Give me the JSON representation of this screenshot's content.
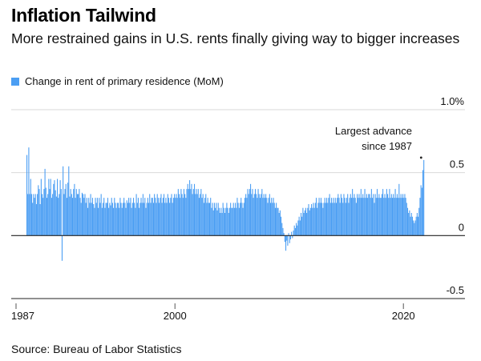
{
  "header": {
    "title": "Inflation Tailwind",
    "subtitle": "More restrained gains in U.S. rents finally giving way to bigger increases"
  },
  "legend": {
    "label": "Change in rent of primary residence (MoM)",
    "color": "#4b9ef3"
  },
  "footer": {
    "source": "Source: Bureau of Labor Statistics"
  },
  "chart_data": {
    "type": "bar",
    "title": "Inflation Tailwind",
    "subtitle": "More restrained gains in U.S. rents finally giving way to bigger increases",
    "xlabel": "",
    "ylabel": "",
    "unit": "%",
    "x_range": [
      1987,
      2021.6
    ],
    "ylim": [
      -0.5,
      1.0
    ],
    "y_ticks": [
      {
        "value": 1.0,
        "label": "1.0%"
      },
      {
        "value": 0.5,
        "label": "0.5"
      },
      {
        "value": 0,
        "label": "0"
      },
      {
        "value": -0.5,
        "label": "-0.5"
      }
    ],
    "x_ticks": [
      {
        "value": 1987,
        "label": "1987"
      },
      {
        "value": 2000,
        "label": "2000"
      },
      {
        "value": 2020,
        "label": "2020"
      }
    ],
    "grid": true,
    "legend_position": "top-left",
    "bar_color": "#4b9ef3",
    "annotation": {
      "lines": [
        "Largest advance",
        "since 1987"
      ],
      "year": 2021.55,
      "value": 0.6
    },
    "series": [
      {
        "name": "Change in rent of primary residence (MoM)",
        "start": "1987-01",
        "frequency": "monthly",
        "values_by_year": [
          {
            "year": 1987,
            "values": [
              0.64,
              0.33,
              0.7,
              0.33,
              0.45,
              0.33,
              0.26,
              0.33,
              0.3,
              0.33,
              0.25,
              0.33
            ]
          },
          {
            "year": 1988,
            "values": [
              0.4,
              0.37,
              0.25,
              0.45,
              0.33,
              0.3,
              0.37,
              0.53,
              0.38,
              0.3,
              0.33,
              0.45
            ]
          },
          {
            "year": 1989,
            "values": [
              0.37,
              0.45,
              0.3,
              0.33,
              0.41,
              0.44,
              0.36,
              0.31,
              0.45,
              0.3,
              0.33,
              0.44
            ]
          },
          {
            "year": 1990,
            "values": [
              0.37,
              -0.2,
              0.55,
              0.33,
              0.37,
              0.41,
              0.3,
              0.42,
              0.55,
              0.31,
              0.37,
              0.33
            ]
          },
          {
            "year": 1991,
            "values": [
              0.3,
              0.37,
              0.41,
              0.3,
              0.37,
              0.33,
              0.33,
              0.37,
              0.3,
              0.26,
              0.34,
              0.33
            ]
          },
          {
            "year": 1992,
            "values": [
              0.3,
              0.33,
              0.26,
              0.3,
              0.22,
              0.3,
              0.26,
              0.33,
              0.26,
              0.3,
              0.25,
              0.22
            ]
          },
          {
            "year": 1993,
            "values": [
              0.3,
              0.26,
              0.3,
              0.22,
              0.3,
              0.26,
              0.33,
              0.22,
              0.26,
              0.3,
              0.22,
              0.26
            ]
          },
          {
            "year": 1994,
            "values": [
              0.26,
              0.3,
              0.22,
              0.26,
              0.24,
              0.3,
              0.26,
              0.22,
              0.3,
              0.26,
              0.22,
              0.26
            ]
          },
          {
            "year": 1995,
            "values": [
              0.26,
              0.22,
              0.3,
              0.26,
              0.22,
              0.26,
              0.3,
              0.26,
              0.22,
              0.28,
              0.26,
              0.3
            ]
          },
          {
            "year": 1996,
            "values": [
              0.26,
              0.3,
              0.22,
              0.26,
              0.3,
              0.26,
              0.22,
              0.33,
              0.26,
              0.3,
              0.22,
              0.26
            ]
          },
          {
            "year": 1997,
            "values": [
              0.3,
              0.26,
              0.33,
              0.26,
              0.3,
              0.22,
              0.26,
              0.3,
              0.26,
              0.33,
              0.26,
              0.3
            ]
          },
          {
            "year": 1998,
            "values": [
              0.3,
              0.26,
              0.33,
              0.3,
              0.26,
              0.33,
              0.3,
              0.26,
              0.3,
              0.33,
              0.26,
              0.3
            ]
          },
          {
            "year": 1999,
            "values": [
              0.33,
              0.26,
              0.3,
              0.26,
              0.33,
              0.3,
              0.26,
              0.3,
              0.33,
              0.26,
              0.3,
              0.33
            ]
          },
          {
            "year": 2000,
            "values": [
              0.3,
              0.33,
              0.3,
              0.37,
              0.33,
              0.3,
              0.37,
              0.33,
              0.3,
              0.37,
              0.33,
              0.3
            ]
          },
          {
            "year": 2001,
            "values": [
              0.37,
              0.41,
              0.37,
              0.44,
              0.37,
              0.41,
              0.33,
              0.37,
              0.41,
              0.33,
              0.37,
              0.33
            ]
          },
          {
            "year": 2002,
            "values": [
              0.37,
              0.3,
              0.33,
              0.37,
              0.3,
              0.33,
              0.26,
              0.3,
              0.33,
              0.26,
              0.3,
              0.26
            ]
          },
          {
            "year": 2003,
            "values": [
              0.26,
              0.3,
              0.22,
              0.26,
              0.2,
              0.26,
              0.22,
              0.26,
              0.2,
              0.26,
              0.22,
              0.18
            ]
          },
          {
            "year": 2004,
            "values": [
              0.22,
              0.18,
              0.26,
              0.22,
              0.18,
              0.22,
              0.26,
              0.22,
              0.18,
              0.22,
              0.26,
              0.22
            ]
          },
          {
            "year": 2005,
            "values": [
              0.22,
              0.26,
              0.22,
              0.26,
              0.22,
              0.3,
              0.26,
              0.22,
              0.26,
              0.3,
              0.26,
              0.22
            ]
          },
          {
            "year": 2006,
            "values": [
              0.26,
              0.3,
              0.33,
              0.3,
              0.37,
              0.33,
              0.37,
              0.41,
              0.33,
              0.37,
              0.3,
              0.33
            ]
          },
          {
            "year": 2007,
            "values": [
              0.37,
              0.33,
              0.3,
              0.37,
              0.33,
              0.3,
              0.33,
              0.37,
              0.3,
              0.33,
              0.3,
              0.33
            ]
          },
          {
            "year": 2008,
            "values": [
              0.3,
              0.26,
              0.3,
              0.33,
              0.26,
              0.3,
              0.26,
              0.3,
              0.26,
              0.22,
              0.26,
              0.22
            ]
          },
          {
            "year": 2009,
            "values": [
              0.22,
              0.18,
              0.2,
              0.15,
              0.1,
              0.06,
              0.02,
              -0.05,
              -0.12,
              -0.04,
              -0.08,
              0.02
            ]
          },
          {
            "year": 2010,
            "values": [
              -0.06,
              -0.03,
              0.03,
              -0.02,
              0.04,
              0.08,
              0.06,
              0.1,
              0.08,
              0.12,
              0.15,
              0.12
            ]
          },
          {
            "year": 2011,
            "values": [
              0.18,
              0.15,
              0.22,
              0.18,
              0.2,
              0.22,
              0.18,
              0.22,
              0.25,
              0.2,
              0.22,
              0.25
            ]
          },
          {
            "year": 2012,
            "values": [
              0.22,
              0.26,
              0.22,
              0.26,
              0.3,
              0.22,
              0.26,
              0.3,
              0.26,
              0.3,
              0.26,
              0.22
            ]
          },
          {
            "year": 2013,
            "values": [
              0.26,
              0.3,
              0.26,
              0.3,
              0.26,
              0.3,
              0.33,
              0.26,
              0.3,
              0.26,
              0.3,
              0.26
            ]
          },
          {
            "year": 2014,
            "values": [
              0.3,
              0.26,
              0.3,
              0.33,
              0.3,
              0.26,
              0.33,
              0.3,
              0.26,
              0.33,
              0.3,
              0.26
            ]
          },
          {
            "year": 2015,
            "values": [
              0.3,
              0.33,
              0.26,
              0.3,
              0.33,
              0.3,
              0.37,
              0.3,
              0.33,
              0.3,
              0.26,
              0.33
            ]
          },
          {
            "year": 2016,
            "values": [
              0.3,
              0.33,
              0.3,
              0.37,
              0.3,
              0.33,
              0.3,
              0.37,
              0.3,
              0.33,
              0.3,
              0.33
            ]
          },
          {
            "year": 2017,
            "values": [
              0.33,
              0.3,
              0.37,
              0.3,
              0.33,
              0.26,
              0.33,
              0.3,
              0.37,
              0.3,
              0.33,
              0.3
            ]
          },
          {
            "year": 2018,
            "values": [
              0.3,
              0.33,
              0.37,
              0.3,
              0.33,
              0.3,
              0.37,
              0.33,
              0.3,
              0.37,
              0.3,
              0.33
            ]
          },
          {
            "year": 2019,
            "values": [
              0.3,
              0.33,
              0.3,
              0.37,
              0.3,
              0.33,
              0.3,
              0.41,
              0.3,
              0.33,
              0.3,
              0.33
            ]
          },
          {
            "year": 2020,
            "values": [
              0.3,
              0.33,
              0.3,
              0.26,
              0.22,
              0.18,
              0.2,
              0.15,
              0.18,
              0.15,
              0.12,
              0.1
            ]
          },
          {
            "year": 2021,
            "values": [
              0.12,
              0.15,
              0.18,
              0.15,
              0.22,
              0.3,
              0.4,
              0.38,
              0.52,
              0.6
            ]
          }
        ]
      }
    ]
  }
}
